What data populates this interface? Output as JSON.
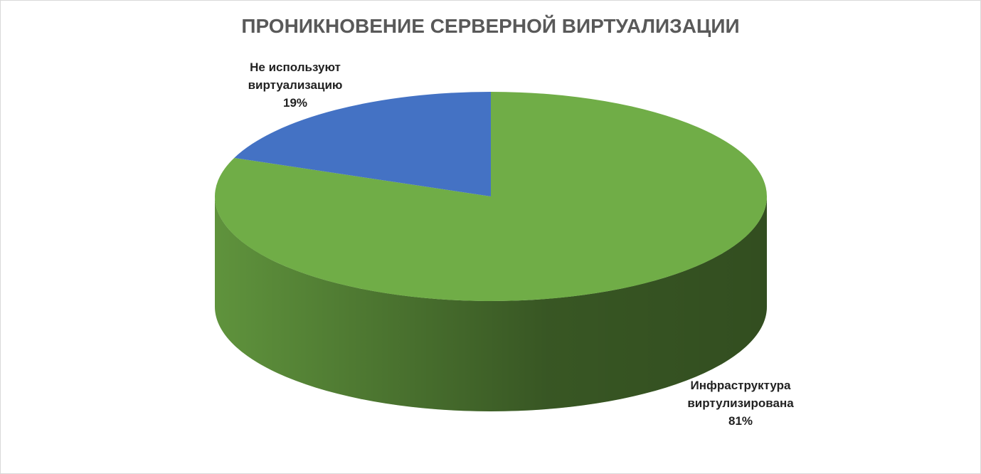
{
  "chart_data": {
    "type": "pie3d",
    "title": "ПРОНИКНОВЕНИЕ СЕРВЕРНОЙ ВИРТУАЛИЗАЦИИ",
    "categories": [
      "Инфраструктура виртулизирована",
      "Не используют виртуализацию"
    ],
    "values": [
      81,
      19
    ],
    "value_labels": [
      "81%",
      "19%"
    ],
    "colors": [
      "#70ad47",
      "#4472c4"
    ]
  }
}
